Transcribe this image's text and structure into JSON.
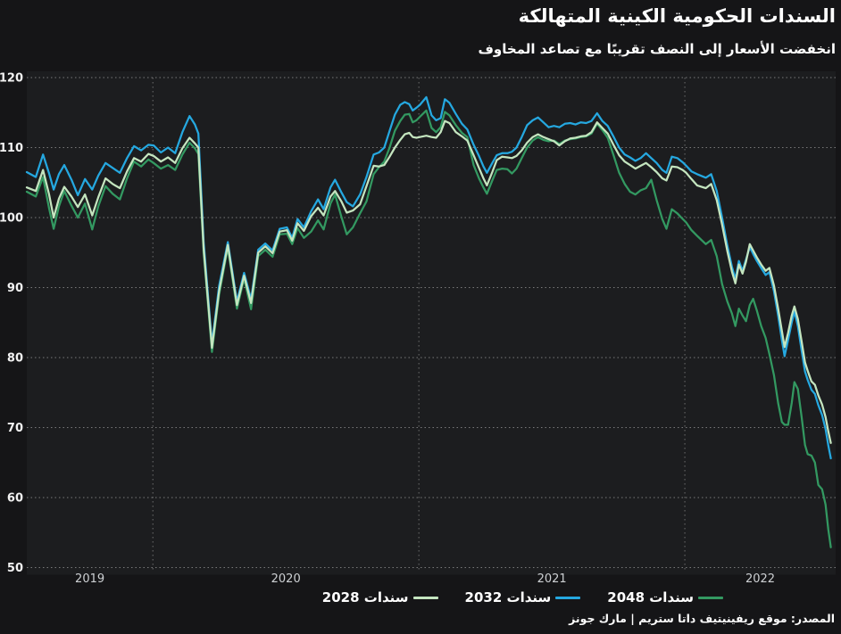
{
  "header": {
    "title": "السندات الحكومية الكينية المتهالكة",
    "subtitle": "انخفضت الأسعار إلى النصف تقريبًا مع تصاعد المخاوف"
  },
  "source": "المصدر: موقع ريفينيتيف داتا ستريم | مارك جونز",
  "colors": {
    "background": "#151517",
    "plot_background": "#1c1d1f",
    "grid": "#8a8a8a",
    "grid_vertical": "#6e6e6e",
    "y_tick_text": "#f2f2f2",
    "x_tick_text": "#cdd0d3",
    "bond_2028": "#c4e5bf",
    "bond_2032": "#25a8e0",
    "bond_2048": "#339961"
  },
  "legend": {
    "items": [
      {
        "label": "سندات 2028"
      },
      {
        "label": "سندات 2032"
      },
      {
        "label": "سندات 2048"
      }
    ]
  },
  "chart_data": {
    "type": "line",
    "title": "السندات الحكومية الكينية المتهالكة",
    "subtitle": "انخفضت الأسعار إلى النصف تقريبًا مع تصاعد المخاوف",
    "xlabel": "",
    "ylabel": "",
    "grid": "dotted",
    "legend_position": "bottom",
    "x_domain": [
      2019.526,
      2022.567
    ],
    "y_domain": [
      50,
      120
    ],
    "y_ticks": [
      50,
      60,
      70,
      80,
      90,
      100,
      110,
      120
    ],
    "x_label_years": [
      "2019",
      "2020",
      "2021",
      "2022"
    ],
    "x_grid_years": [
      2020,
      2021,
      2022
    ],
    "draw_order": [
      1,
      2,
      0
    ],
    "x": [
      2019.526,
      2019.56,
      2019.587,
      2019.61,
      2019.627,
      2019.647,
      2019.667,
      2019.694,
      2019.718,
      2019.745,
      2019.772,
      2019.795,
      2019.822,
      2019.849,
      2019.876,
      2019.903,
      2019.929,
      2019.956,
      2019.983,
      2020.003,
      2020.03,
      2020.057,
      2020.084,
      2020.111,
      2020.138,
      2020.158,
      2020.171,
      2020.191,
      2020.222,
      2020.249,
      2020.282,
      2020.316,
      2020.343,
      2020.369,
      2020.396,
      2020.423,
      2020.45,
      2020.477,
      2020.504,
      2020.524,
      2020.544,
      2020.568,
      2020.595,
      2020.621,
      2020.642,
      2020.668,
      2020.685,
      2020.709,
      2020.729,
      2020.752,
      2020.779,
      2020.803,
      2020.83,
      2020.85,
      2020.87,
      2020.89,
      2020.91,
      2020.93,
      2020.947,
      2020.964,
      2020.977,
      2020.991,
      2021.004,
      2021.028,
      2021.048,
      2021.065,
      2021.082,
      2021.098,
      2021.115,
      2021.139,
      2021.162,
      2021.182,
      2021.206,
      2021.226,
      2021.243,
      2021.256,
      2021.276,
      2021.293,
      2021.313,
      2021.333,
      2021.35,
      2021.367,
      2021.387,
      2021.407,
      2021.428,
      2021.448,
      2021.468,
      2021.488,
      2021.508,
      2021.528,
      2021.549,
      2021.569,
      2021.589,
      2021.609,
      2021.629,
      2021.649,
      2021.67,
      2021.69,
      2021.71,
      2021.733,
      2021.753,
      2021.774,
      2021.794,
      2021.814,
      2021.834,
      2021.854,
      2021.874,
      2021.894,
      2021.915,
      2021.931,
      2021.951,
      2021.972,
      2021.992,
      2022.005,
      2022.025,
      2022.046,
      2022.079,
      2022.099,
      2022.12,
      2022.14,
      2022.16,
      2022.177,
      2022.19,
      2022.203,
      2022.217,
      2022.23,
      2022.244,
      2022.257,
      2022.271,
      2022.287,
      2022.304,
      2022.318,
      2022.335,
      2022.351,
      2022.365,
      2022.375,
      2022.388,
      2022.402,
      2022.412,
      2022.425,
      2022.439,
      2022.452,
      2022.462,
      2022.476,
      2022.489,
      2022.502,
      2022.516,
      2022.529,
      2022.539,
      2022.549
    ],
    "series": [
      {
        "name": "سندات 2028",
        "color_key": "bond_2028",
        "values": [
          104.3,
          103.8,
          106.8,
          103.3,
          100,
          102.7,
          104.4,
          103,
          101.5,
          103.3,
          100.3,
          102.9,
          105.6,
          104.8,
          104.2,
          106.6,
          108.5,
          108,
          109.1,
          108.8,
          108,
          108.6,
          107.8,
          109.9,
          111.4,
          110.6,
          110,
          95.6,
          81.4,
          89.5,
          96.1,
          87.5,
          91.7,
          87.8,
          95,
          95.9,
          94.9,
          98,
          98.2,
          96.7,
          99.2,
          98.1,
          100.2,
          101.4,
          100.3,
          103,
          103.8,
          102.3,
          100.7,
          101,
          101.9,
          104.5,
          107.4,
          107.3,
          107.5,
          108.7,
          110,
          111.1,
          111.9,
          112.1,
          111.5,
          111.4,
          111.5,
          111.7,
          111.5,
          111.4,
          112.2,
          113.8,
          113.5,
          112.2,
          111.6,
          111,
          108.9,
          107.1,
          105.6,
          104.6,
          106.5,
          108.2,
          108.7,
          108.6,
          108.5,
          108.8,
          109.6,
          110.7,
          111.5,
          111.9,
          111.5,
          111.2,
          110.9,
          110.3,
          110.9,
          111.3,
          111.4,
          111.6,
          111.7,
          112.2,
          113.6,
          112.8,
          112,
          110.3,
          108.9,
          108,
          107.5,
          107,
          107.4,
          107.8,
          107.2,
          106.5,
          105.6,
          105.3,
          107.3,
          107.2,
          106.8,
          106.4,
          105.5,
          104.6,
          104.2,
          104.8,
          102.5,
          99,
          95.2,
          92.3,
          90.6,
          93.3,
          92,
          93.7,
          96.2,
          95.3,
          94.3,
          93.3,
          92.4,
          92.8,
          90.3,
          87,
          83.8,
          81.5,
          83.5,
          86,
          87.3,
          85.5,
          82.3,
          79.3,
          78.1,
          76.6,
          76.1,
          74.6,
          73.3,
          71.5,
          69.5,
          67.8
        ]
      },
      {
        "name": "سندات 2032",
        "color_key": "bond_2032",
        "values": [
          106.5,
          105.8,
          109,
          106.3,
          104,
          106.2,
          107.5,
          105.4,
          103.2,
          105.5,
          104,
          106,
          107.8,
          107.1,
          106.4,
          108.5,
          110.2,
          109.6,
          110.4,
          110.3,
          109.3,
          110,
          109.2,
          112.2,
          114.5,
          113.3,
          112,
          96.5,
          82,
          90.2,
          96.5,
          88,
          92.1,
          88.3,
          95.4,
          96.3,
          95.3,
          98.4,
          98.6,
          97.1,
          99.8,
          98.6,
          100.9,
          102.6,
          101.2,
          104.3,
          105.4,
          103.6,
          102.2,
          101.6,
          103.3,
          105.8,
          109,
          109.3,
          110,
          112.4,
          114.7,
          116.1,
          116.5,
          116.2,
          115.3,
          115.7,
          116.1,
          117.2,
          114.6,
          113.9,
          114.2,
          116.9,
          116.4,
          114.8,
          113.4,
          112.6,
          110.4,
          108.8,
          107.3,
          106.4,
          107.8,
          108.9,
          109.2,
          109.2,
          109.4,
          110,
          111.5,
          113.2,
          113.9,
          114.3,
          113.6,
          112.9,
          113.1,
          112.9,
          113.4,
          113.5,
          113.3,
          113.6,
          113.5,
          113.8,
          114.9,
          113.8,
          113.1,
          111.5,
          110,
          109,
          108.6,
          108.1,
          108.5,
          109.2,
          108.5,
          107.8,
          106.8,
          106.4,
          108.7,
          108.5,
          107.9,
          107.4,
          106.6,
          106.2,
          105.7,
          106.2,
          103.8,
          100,
          96,
          93,
          91.2,
          93.8,
          92.4,
          94,
          95.8,
          94.8,
          93.8,
          92.8,
          91.8,
          92.2,
          89.5,
          86,
          82.5,
          80.2,
          82.5,
          85,
          86.6,
          84.5,
          81,
          78,
          76.8,
          75.4,
          74.8,
          73.2,
          71.8,
          69.8,
          67.5,
          65.6
        ]
      },
      {
        "name": "سندات 2048",
        "color_key": "bond_2048",
        "values": [
          103.7,
          103,
          105.8,
          101.3,
          98.4,
          101.6,
          103.8,
          101.7,
          100,
          102,
          98.3,
          101.6,
          104.5,
          103.4,
          102.6,
          105.6,
          108,
          107.3,
          108.3,
          107.8,
          107,
          107.5,
          106.8,
          109,
          110.7,
          109.9,
          109.1,
          95,
          80.8,
          89,
          95.7,
          87,
          91.3,
          86.9,
          94.5,
          95.4,
          94.4,
          97.6,
          97.7,
          96.2,
          98.5,
          97.1,
          98,
          99.6,
          98.3,
          102,
          103.3,
          100.1,
          97.6,
          98.6,
          100.6,
          102.3,
          106.2,
          107.2,
          108,
          110,
          112.4,
          113.8,
          114.7,
          114.8,
          113.6,
          113.9,
          114.4,
          115.3,
          112.8,
          112.2,
          112.9,
          115.1,
          114.6,
          113.2,
          112.1,
          111.5,
          107.5,
          105.6,
          104.3,
          103.4,
          105.3,
          106.8,
          107,
          106.9,
          106.3,
          107,
          108.5,
          110,
          111,
          111.5,
          111.1,
          110.9,
          111,
          110.5,
          111,
          111.2,
          111.3,
          111.5,
          111.6,
          112,
          113.4,
          112.5,
          111.4,
          108.8,
          106.4,
          104.8,
          103.7,
          103.3,
          103.9,
          104.2,
          105.4,
          102.5,
          99.8,
          98.4,
          101.2,
          100.6,
          99.8,
          99.3,
          98.2,
          97.4,
          96.2,
          96.8,
          94.5,
          90.5,
          88,
          86.3,
          84.5,
          87,
          86,
          85.2,
          87.5,
          88.4,
          86.7,
          84.5,
          82.8,
          80.5,
          77.5,
          73.5,
          70.8,
          70.4,
          70.4,
          73.5,
          76.5,
          75.5,
          71.5,
          67.5,
          66.2,
          66,
          65,
          61.8,
          61.2,
          59,
          55.5,
          52.9
        ]
      }
    ]
  }
}
